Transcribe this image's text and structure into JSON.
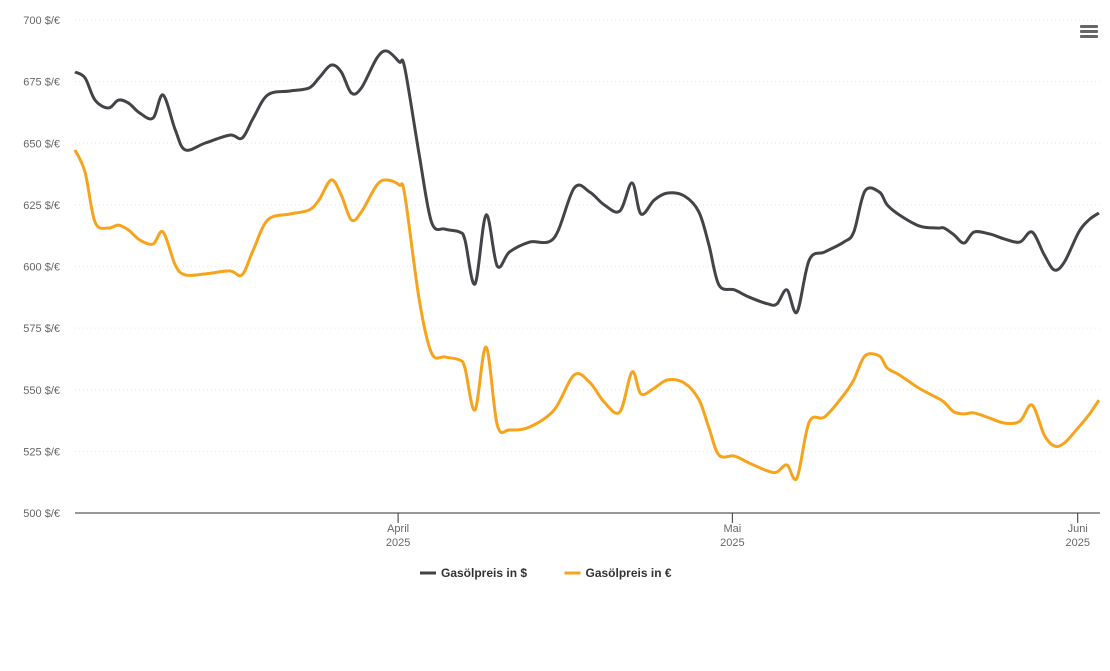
{
  "chart_data": {
    "type": "line",
    "x": [
      0,
      0.9,
      1.8,
      3,
      3.9,
      4.8,
      5.8,
      7,
      7.9,
      9,
      9.9,
      11.7,
      13.9,
      15,
      16,
      17.3,
      19.3,
      21,
      21.9,
      23,
      23.9,
      24.8,
      25.7,
      27.1,
      28,
      29.1,
      29.6,
      30.9,
      32,
      33.2,
      34.5,
      35,
      35.9,
      36.9,
      37.9,
      39,
      40.8,
      43,
      44.8,
      46.2,
      47.5,
      48.9,
      50,
      50.8,
      52,
      53.2,
      54.7,
      56,
      56.9,
      57.8,
      59.2,
      60.5,
      62.2,
      63,
      63.9,
      64.8,
      65.9,
      67.3,
      69,
      69.9,
      70.9,
      72.2,
      72.9,
      74,
      75.8,
      77.4,
      78,
      78.9,
      79.8,
      80.7,
      82.1,
      83.4,
      84.8,
      85.9,
      87,
      87.9,
      88.8,
      90.1,
      91,
      91.9
    ],
    "series": [
      {
        "name": "Gasölpreis in $",
        "color": "#434348",
        "values": [
          678.9,
          676.5,
          667.5,
          664.3,
          667.5,
          666.3,
          662.3,
          660.2,
          669.6,
          655.4,
          647.3,
          650.1,
          653.3,
          652.1,
          660.2,
          669.6,
          671.2,
          672.4,
          676.5,
          681.7,
          678.9,
          670.4,
          672.4,
          684.6,
          687.4,
          683,
          680.5,
          645.2,
          618,
          615.2,
          614,
          610.8,
          592.9,
          620.9,
          600.2,
          605.9,
          609.9,
          611.6,
          631.8,
          630.2,
          625,
          622.5,
          633.9,
          621.3,
          627,
          629.8,
          628.6,
          622.1,
          608.7,
          592.5,
          590.5,
          587.6,
          584.8,
          584.8,
          590.5,
          581.5,
          602.6,
          605.9,
          609.9,
          614,
          630.6,
          630.2,
          625,
          620.9,
          616.4,
          615.6,
          615.6,
          612.8,
          609.5,
          614,
          613.2,
          611.2,
          609.9,
          614,
          604.7,
          598.6,
          601.8,
          614,
          618.9,
          621.7
        ]
      },
      {
        "name": "Gasölpreis in €",
        "color": "#f7a31c",
        "values": [
          647.3,
          638.3,
          618,
          615.6,
          616.8,
          614.8,
          610.8,
          609.1,
          614,
          600.6,
          596.6,
          597,
          598.2,
          596.6,
          606.7,
          618.9,
          621.3,
          622.9,
          627,
          635.1,
          629,
          618.9,
          622.1,
          633.1,
          635.1,
          633.1,
          629,
          586.4,
          564.9,
          563.3,
          562.1,
          558.8,
          541.8,
          567.3,
          535.7,
          533.7,
          534.9,
          541.8,
          556,
          553,
          545,
          541,
          557.2,
          548.3,
          550.7,
          554,
          552.7,
          546,
          534.5,
          523.5,
          523.1,
          520.3,
          517,
          516.6,
          519.5,
          514.2,
          536.9,
          539,
          547.9,
          554,
          563.7,
          563.7,
          558.8,
          556,
          550.5,
          546.7,
          545,
          541,
          540.2,
          540.6,
          538.5,
          536.5,
          537.2,
          543.8,
          531.6,
          527.2,
          528.4,
          534.9,
          539.8,
          545.8
        ]
      }
    ],
    "xlim": [
      0,
      92
    ],
    "xticks": [
      {
        "value": 29,
        "label": [
          "April",
          "2025"
        ]
      },
      {
        "value": 59,
        "label": [
          "Mai",
          "2025"
        ]
      },
      {
        "value": 90,
        "label": [
          "Juni",
          "2025"
        ]
      }
    ],
    "ylim": [
      500,
      700
    ],
    "yticks": [
      {
        "value": 500,
        "label": "500 $/€"
      },
      {
        "value": 525,
        "label": "525 $/€"
      },
      {
        "value": 550,
        "label": "550 $/€"
      },
      {
        "value": 575,
        "label": "575 $/€"
      },
      {
        "value": 600,
        "label": "600 $/€"
      },
      {
        "value": 625,
        "label": "625 $/€"
      },
      {
        "value": 650,
        "label": "650 $/€"
      },
      {
        "value": 675,
        "label": "675 $/€"
      },
      {
        "value": 700,
        "label": "700 $/€"
      }
    ],
    "grid": true,
    "legend": "bottom"
  }
}
